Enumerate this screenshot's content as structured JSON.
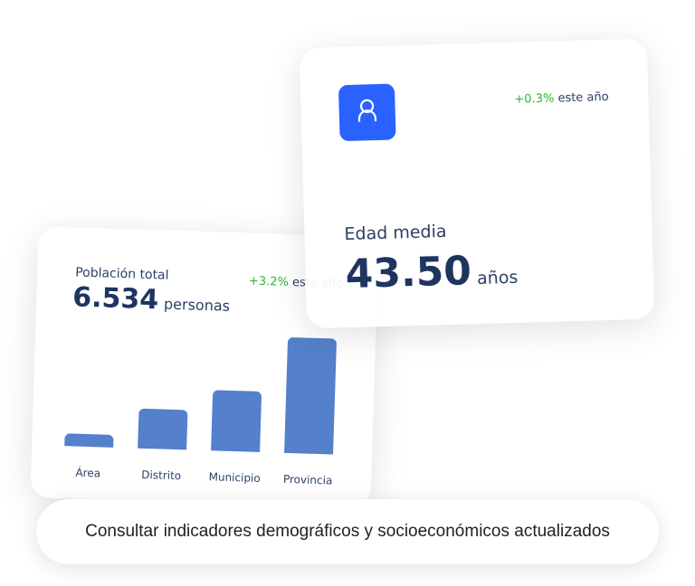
{
  "population_card": {
    "title": "Población total",
    "value": "6.534",
    "unit": "personas",
    "change": "+3.2%",
    "change_suffix": "este año",
    "bars": [
      {
        "label": "Área",
        "level": 0.11
      },
      {
        "label": "Distrito",
        "level": 0.34
      },
      {
        "label": "Municipio",
        "level": 0.52
      },
      {
        "label": "Provincia",
        "level": 1.0
      }
    ],
    "bar_color": "#5480cc"
  },
  "age_card": {
    "icon": "user-icon",
    "change": "+0.3%",
    "change_suffix": "este año",
    "title": "Edad media",
    "value": "43.50",
    "unit": "años"
  },
  "banner": {
    "text": "Consultar indicadores demográficos y socioeconómicos actualizados"
  },
  "colors": {
    "accent": "#2962ff",
    "positive": "#2bb52b",
    "text": "#1f3560"
  }
}
